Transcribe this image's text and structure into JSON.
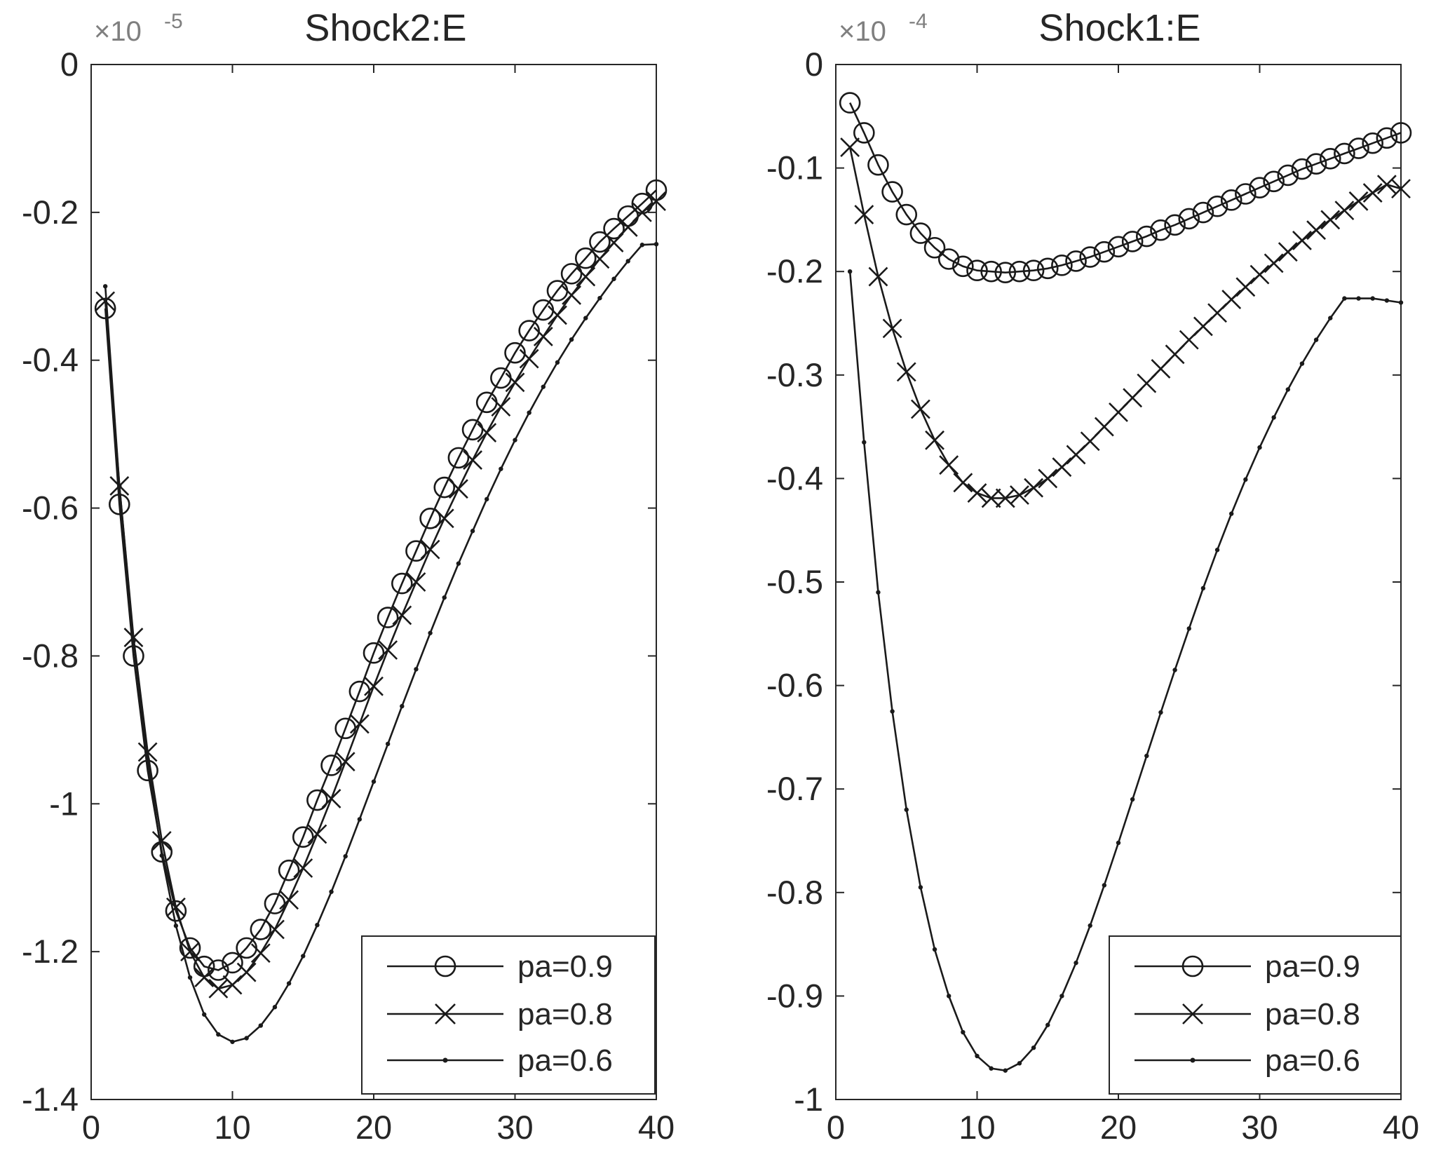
{
  "colors": {
    "line": "#1a1a1a",
    "axis": "#262626",
    "exponent": "#7f7f7f",
    "background": "#ffffff"
  },
  "chart_data": [
    {
      "type": "line",
      "title": "Shock2:E",
      "exponent_label": "×10",
      "exponent_power": "-5",
      "xlim": [
        0,
        40
      ],
      "ylim": [
        -1.4,
        0
      ],
      "xticks": [
        0,
        10,
        20,
        30,
        40
      ],
      "xtick_labels": [
        "0",
        "10",
        "20",
        "30",
        "40"
      ],
      "yticks": [
        0,
        -0.2,
        -0.4,
        -0.6,
        -0.8,
        -1,
        -1.2,
        -1.4
      ],
      "ytick_labels": [
        "0",
        "-0.2",
        "-0.4",
        "-0.6",
        "-0.8",
        "-1",
        "-1.2",
        "-1.4"
      ],
      "legend_position": "bottom-right",
      "x": [
        1,
        2,
        3,
        4,
        5,
        6,
        7,
        8,
        9,
        10,
        11,
        12,
        13,
        14,
        15,
        16,
        17,
        18,
        19,
        20,
        21,
        22,
        23,
        24,
        25,
        26,
        27,
        28,
        29,
        30,
        31,
        32,
        33,
        34,
        35,
        36,
        37,
        38,
        39,
        40
      ],
      "series": [
        {
          "name": "pa=0.9",
          "marker": "circle",
          "values": [
            -0.33,
            -0.595,
            -0.8,
            -0.955,
            -1.065,
            -1.145,
            -1.195,
            -1.22,
            -1.225,
            -1.215,
            -1.195,
            -1.17,
            -1.135,
            -1.09,
            -1.045,
            -0.995,
            -0.948,
            -0.898,
            -0.848,
            -0.796,
            -0.748,
            -0.702,
            -0.658,
            -0.614,
            -0.572,
            -0.532,
            -0.494,
            -0.457,
            -0.424,
            -0.39,
            -0.36,
            -0.332,
            -0.306,
            -0.283,
            -0.262,
            -0.24,
            -0.222,
            -0.205,
            -0.188,
            -0.17
          ]
        },
        {
          "name": "pa=0.8",
          "marker": "x",
          "values": [
            -0.32,
            -0.57,
            -0.775,
            -0.93,
            -1.05,
            -1.14,
            -1.2,
            -1.235,
            -1.25,
            -1.245,
            -1.228,
            -1.202,
            -1.17,
            -1.13,
            -1.087,
            -1.041,
            -0.993,
            -0.943,
            -0.892,
            -0.841,
            -0.792,
            -0.745,
            -0.7,
            -0.656,
            -0.614,
            -0.574,
            -0.535,
            -0.498,
            -0.463,
            -0.43,
            -0.398,
            -0.368,
            -0.339,
            -0.312,
            -0.287,
            -0.263,
            -0.241,
            -0.22,
            -0.2,
            -0.185
          ]
        },
        {
          "name": "pa=0.6",
          "marker": "dot",
          "values": [
            -0.3,
            -0.57,
            -0.78,
            -0.94,
            -1.07,
            -1.165,
            -1.235,
            -1.285,
            -1.312,
            -1.322,
            -1.317,
            -1.3,
            -1.275,
            -1.243,
            -1.206,
            -1.164,
            -1.119,
            -1.071,
            -1.021,
            -0.97,
            -0.919,
            -0.868,
            -0.818,
            -0.769,
            -0.721,
            -0.675,
            -0.631,
            -0.588,
            -0.547,
            -0.508,
            -0.471,
            -0.436,
            -0.403,
            -0.372,
            -0.343,
            -0.316,
            -0.29,
            -0.266,
            -0.244,
            -0.243
          ]
        }
      ]
    },
    {
      "type": "line",
      "title": "Shock1:E",
      "exponent_label": "×10",
      "exponent_power": "-4",
      "xlim": [
        0,
        40
      ],
      "ylim": [
        -1,
        0
      ],
      "xticks": [
        0,
        10,
        20,
        30,
        40
      ],
      "xtick_labels": [
        "0",
        "10",
        "20",
        "30",
        "40"
      ],
      "yticks": [
        0,
        -0.1,
        -0.2,
        -0.3,
        -0.4,
        -0.5,
        -0.6,
        -0.7,
        -0.8,
        -0.9,
        -1
      ],
      "ytick_labels": [
        "0",
        "-0.1",
        "-0.2",
        "-0.3",
        "-0.4",
        "-0.5",
        "-0.6",
        "-0.7",
        "-0.8",
        "-0.9",
        "-1"
      ],
      "legend_position": "bottom-right",
      "x": [
        1,
        2,
        3,
        4,
        5,
        6,
        7,
        8,
        9,
        10,
        11,
        12,
        13,
        14,
        15,
        16,
        17,
        18,
        19,
        20,
        21,
        22,
        23,
        24,
        25,
        26,
        27,
        28,
        29,
        30,
        31,
        32,
        33,
        34,
        35,
        36,
        37,
        38,
        39,
        40
      ],
      "series": [
        {
          "name": "pa=0.9",
          "marker": "circle",
          "values": [
            -0.037,
            -0.066,
            -0.097,
            -0.123,
            -0.145,
            -0.163,
            -0.177,
            -0.188,
            -0.195,
            -0.199,
            -0.2,
            -0.201,
            -0.2,
            -0.199,
            -0.197,
            -0.194,
            -0.19,
            -0.186,
            -0.181,
            -0.176,
            -0.171,
            -0.166,
            -0.16,
            -0.155,
            -0.149,
            -0.143,
            -0.137,
            -0.131,
            -0.125,
            -0.119,
            -0.113,
            -0.107,
            -0.101,
            -0.096,
            -0.091,
            -0.086,
            -0.081,
            -0.076,
            -0.071,
            -0.066
          ]
        },
        {
          "name": "pa=0.8",
          "marker": "x",
          "values": [
            -0.08,
            -0.145,
            -0.205,
            -0.255,
            -0.297,
            -0.333,
            -0.363,
            -0.387,
            -0.404,
            -0.414,
            -0.419,
            -0.419,
            -0.416,
            -0.409,
            -0.4,
            -0.389,
            -0.377,
            -0.364,
            -0.35,
            -0.336,
            -0.322,
            -0.308,
            -0.294,
            -0.28,
            -0.266,
            -0.253,
            -0.24,
            -0.227,
            -0.215,
            -0.203,
            -0.192,
            -0.181,
            -0.17,
            -0.16,
            -0.15,
            -0.141,
            -0.132,
            -0.124,
            -0.116,
            -0.12
          ]
        },
        {
          "name": "pa=0.6",
          "marker": "dot",
          "values": [
            -0.2,
            -0.365,
            -0.51,
            -0.625,
            -0.72,
            -0.795,
            -0.855,
            -0.9,
            -0.935,
            -0.958,
            -0.97,
            -0.972,
            -0.965,
            -0.95,
            -0.928,
            -0.9,
            -0.868,
            -0.832,
            -0.793,
            -0.752,
            -0.71,
            -0.668,
            -0.626,
            -0.585,
            -0.545,
            -0.506,
            -0.469,
            -0.434,
            -0.401,
            -0.37,
            -0.341,
            -0.314,
            -0.289,
            -0.266,
            -0.245,
            -0.226,
            -0.226,
            -0.226,
            -0.228,
            -0.23
          ]
        }
      ]
    }
  ]
}
